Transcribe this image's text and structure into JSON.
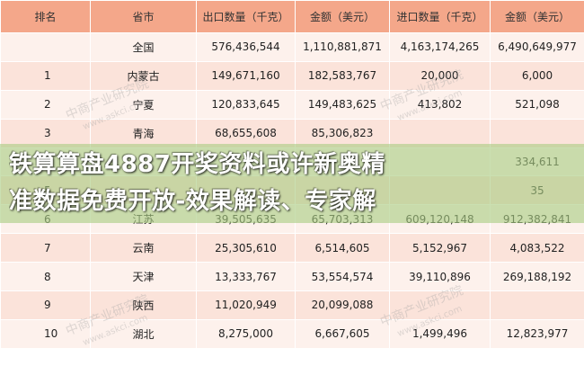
{
  "table": {
    "headers": [
      "排名",
      "省市",
      "出口数量（千克）",
      "金额（美元）",
      "进口数量（千克）",
      "金额（美元）"
    ],
    "rows": [
      [
        "",
        "全国",
        "576,436,544",
        "1,110,881,871",
        "4,163,174,265",
        "6,490,649,977"
      ],
      [
        "1",
        "内蒙古",
        "149,671,160",
        "182,583,767",
        "20,000",
        "6,000"
      ],
      [
        "2",
        "宁夏",
        "120,833,645",
        "149,483,625",
        "413,802",
        "521,098"
      ],
      [
        "3",
        "青海",
        "68,655,608",
        "85,306,823",
        "",
        ""
      ],
      [
        "4",
        "",
        "",
        "",
        "",
        "334,611"
      ],
      [
        "5",
        "",
        "",
        "",
        "",
        "35"
      ],
      [
        "6",
        "江苏",
        "39,505,635",
        "65,703,313",
        "609,120,148",
        "912,382,841"
      ],
      [
        "7",
        "云南",
        "25,305,610",
        "6,514,605",
        "5,152,967",
        "4,083,522"
      ],
      [
        "8",
        "天津",
        "13,333,767",
        "53,554,574",
        "39,110,896",
        "269,188,192"
      ],
      [
        "9",
        "陕西",
        "11,020,949",
        "20,099,088",
        "",
        ""
      ],
      [
        "10",
        "湖北",
        "8,275,000",
        "6,667,605",
        "1,499,496",
        "12,823,977"
      ]
    ]
  },
  "headline": {
    "line1": "铁算算盘4887开奖资料或许新奥精",
    "line2": "准数据免费开放-效果解读、专家解"
  },
  "watermark": {
    "text": "中商产业研究院",
    "url": "www.askci.com"
  }
}
